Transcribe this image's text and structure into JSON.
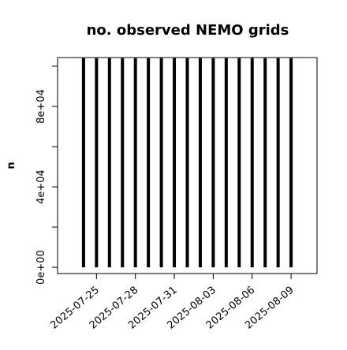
{
  "chart_data": {
    "type": "bar",
    "title": "no. observed NEMO grids",
    "y_label": "n",
    "x": [
      "2025-07-24",
      "2025-07-25",
      "2025-07-26",
      "2025-07-27",
      "2025-07-28",
      "2025-07-29",
      "2025-07-30",
      "2025-07-31",
      "2025-08-01",
      "2025-08-02",
      "2025-08-03",
      "2025-08-04",
      "2025-08-05",
      "2025-08-06",
      "2025-08-07",
      "2025-08-08",
      "2025-08-09"
    ],
    "values": [
      104000,
      104000,
      104000,
      104000,
      104000,
      104000,
      104000,
      104000,
      104000,
      104000,
      104000,
      104000,
      104000,
      104000,
      104000,
      104000,
      104000
    ],
    "color": "#000000",
    "xlim": [
      "2025-07-22",
      "2025-08-11"
    ],
    "xticks": [
      "2025-07-25",
      "2025-07-28",
      "2025-07-31",
      "2025-08-03",
      "2025-08-06",
      "2025-08-09"
    ],
    "ylim": [
      -3100,
      104300
    ],
    "yticks": [
      {
        "value": 0,
        "label": "0e+00"
      },
      {
        "value": 40000,
        "label": "4e+04"
      },
      {
        "value": 80000,
        "label": "8e+04"
      }
    ],
    "yminorticks": [
      20000,
      60000,
      100000
    ]
  }
}
